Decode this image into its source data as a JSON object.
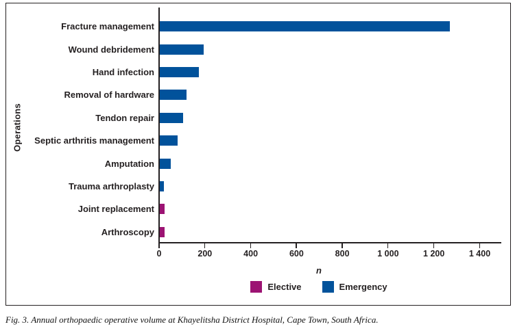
{
  "caption": "Fig. 3. Annual orthopaedic operative volume at Khayelitsha District Hospital, Cape Town, South Africa.",
  "chart_data": {
    "type": "bar",
    "orientation": "horizontal",
    "title": "",
    "xlabel": "n",
    "ylabel": "Operations",
    "xlim": [
      0,
      1500
    ],
    "grid": false,
    "x_ticks": [
      0,
      200,
      400,
      600,
      800,
      1000,
      1200,
      1400
    ],
    "x_tick_labels": [
      "0",
      "200",
      "400",
      "600",
      "800",
      "1 000",
      "1 200",
      "1 400"
    ],
    "legend_position": "bottom",
    "series": [
      {
        "name": "Elective",
        "color": "#9c1373"
      },
      {
        "name": "Emergency",
        "color": "#01529b"
      }
    ],
    "bars": [
      {
        "category": "Fracture management",
        "value": 1270,
        "series": "Emergency"
      },
      {
        "category": "Wound debridement",
        "value": 195,
        "series": "Emergency"
      },
      {
        "category": "Hand infection",
        "value": 175,
        "series": "Emergency"
      },
      {
        "category": "Removal of hardware",
        "value": 120,
        "series": "Emergency"
      },
      {
        "category": "Tendon repair",
        "value": 105,
        "series": "Emergency"
      },
      {
        "category": "Septic arthritis management",
        "value": 80,
        "series": "Emergency"
      },
      {
        "category": "Amputation",
        "value": 50,
        "series": "Emergency"
      },
      {
        "category": "Trauma arthroplasty",
        "value": 20,
        "series": "Emergency"
      },
      {
        "category": "Joint replacement",
        "value": 25,
        "series": "Elective"
      },
      {
        "category": "Arthroscopy",
        "value": 25,
        "series": "Elective"
      }
    ]
  }
}
